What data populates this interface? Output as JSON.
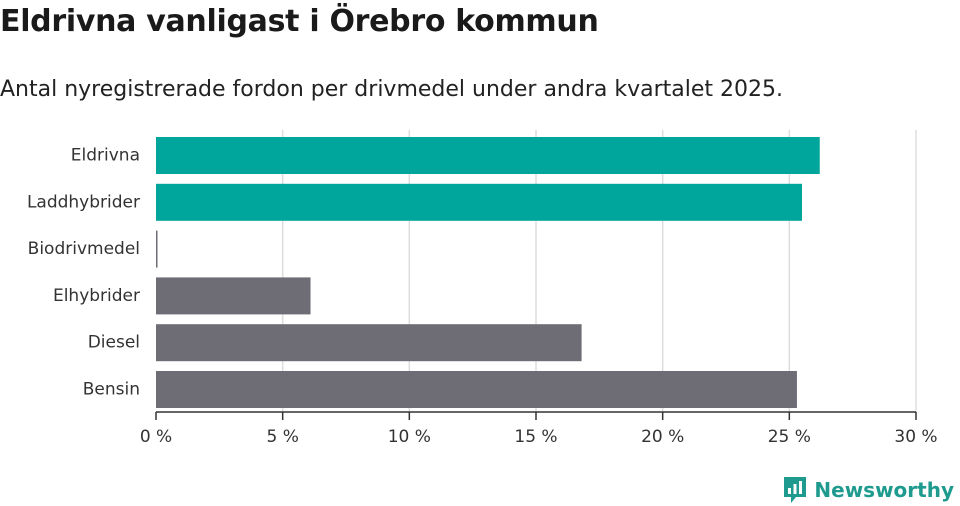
{
  "chart_data": {
    "type": "bar",
    "orientation": "horizontal",
    "title": "Eldrivna vanligast i Örebro kommun",
    "subtitle": "Antal nyregistrerade fordon per drivmedel under andra kvartalet 2025.",
    "categories": [
      "Eldrivna",
      "Laddhybrider",
      "Biodrivmedel",
      "Elhybrider",
      "Diesel",
      "Bensin"
    ],
    "values": [
      26.2,
      25.5,
      0.05,
      6.1,
      16.8,
      25.3
    ],
    "colors": [
      "#00a59b",
      "#00a59b",
      "#6e6d75",
      "#6e6d75",
      "#6e6d75",
      "#6e6d75"
    ],
    "xlim": [
      0,
      30
    ],
    "xticks": [
      0,
      5,
      10,
      15,
      20,
      25,
      30
    ],
    "xtick_labels": [
      "0 %",
      "5 %",
      "10 %",
      "15 %",
      "20 %",
      "25 %",
      "30 %"
    ],
    "xlabel": "",
    "ylabel": "",
    "grid": "vertical",
    "legend": "none"
  },
  "brand": {
    "name": "Newsworthy",
    "logo_icon": "newsworthy-logo-icon",
    "color": "#1f9a8e"
  }
}
